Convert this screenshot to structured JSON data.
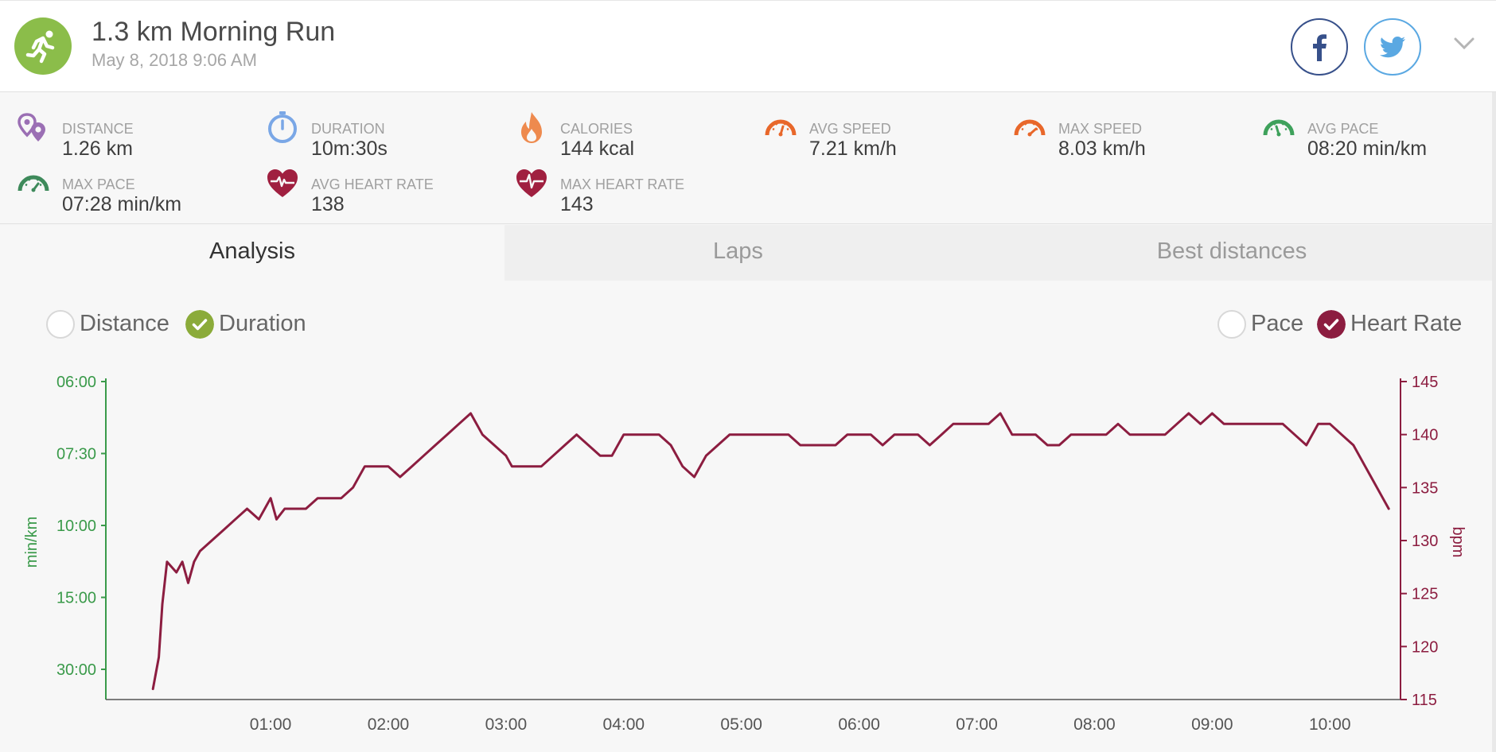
{
  "activity": {
    "title": "1.3 km Morning Run",
    "datetime": "May 8, 2018 9:06 AM",
    "icon": "running-person-icon",
    "icon_color": "#8bbd4a"
  },
  "social": {
    "facebook_icon": "facebook-icon",
    "twitter_icon": "twitter-icon",
    "expand_icon": "chevron-down-icon"
  },
  "stats": [
    {
      "label": "DISTANCE",
      "value": "1.26 km",
      "icon": "location-pins-icon",
      "color": "#9b6fb4"
    },
    {
      "label": "DURATION",
      "value": "10m:30s",
      "icon": "stopwatch-icon",
      "color": "#7aa7e6"
    },
    {
      "label": "CALORIES",
      "value": "144 kcal",
      "icon": "flame-icon",
      "color": "#ee8a4e"
    },
    {
      "label": "AVG SPEED",
      "value": "7.21 km/h",
      "icon": "speedometer-icon",
      "color": "#e8672a"
    },
    {
      "label": "MAX SPEED",
      "value": "8.03 km/h",
      "icon": "speedometer-icon",
      "color": "#e8672a"
    },
    {
      "label": "AVG PACE",
      "value": "08:20 min/km",
      "icon": "pace-gauge-icon",
      "color": "#3ea15b"
    },
    {
      "label": "MAX PACE",
      "value": "07:28 min/km",
      "icon": "pace-gauge-icon",
      "color": "#3e8a5b"
    },
    {
      "label": "AVG HEART RATE",
      "value": "138",
      "icon": "heart-rate-icon",
      "color": "#a02040"
    },
    {
      "label": "MAX HEART RATE",
      "value": "143",
      "icon": "heart-rate-icon",
      "color": "#a02040"
    }
  ],
  "tabs": [
    {
      "label": "Analysis",
      "active": true
    },
    {
      "label": "Laps",
      "active": false
    },
    {
      "label": "Best distances",
      "active": false
    }
  ],
  "toggles": {
    "distance": {
      "label": "Distance",
      "checked": false
    },
    "duration": {
      "label": "Duration",
      "checked": true,
      "color": "#8bab3a"
    },
    "pace": {
      "label": "Pace",
      "checked": false
    },
    "heart_rate": {
      "label": "Heart Rate",
      "checked": true,
      "color": "#8c1d40"
    }
  },
  "chart_data": {
    "type": "line",
    "xlabel": "",
    "x_ticks": [
      "01:00",
      "02:00",
      "03:00",
      "04:00",
      "05:00",
      "06:00",
      "07:00",
      "08:00",
      "09:00",
      "10:00"
    ],
    "x_unit": "minutes",
    "xlim": [
      -0.4,
      10.6
    ],
    "y_left": {
      "label": "min/km",
      "ticks": [
        "06:00",
        "07:30",
        "10:00",
        "15:00",
        "30:00"
      ],
      "color": "#3a9a4a"
    },
    "y_right": {
      "label": "bpm",
      "ticks": [
        145,
        140,
        135,
        130,
        125,
        120,
        115
      ],
      "ylim": [
        115,
        145
      ],
      "color": "#8c1d40"
    },
    "grid": false,
    "series": [
      {
        "name": "Heart Rate",
        "color": "#8c1d40",
        "x": [
          0.0,
          0.05,
          0.08,
          0.12,
          0.2,
          0.25,
          0.3,
          0.35,
          0.4,
          0.5,
          0.6,
          0.7,
          0.8,
          0.9,
          1.0,
          1.05,
          1.12,
          1.2,
          1.3,
          1.4,
          1.5,
          1.6,
          1.7,
          1.8,
          1.9,
          2.0,
          2.1,
          2.2,
          2.3,
          2.4,
          2.5,
          2.6,
          2.7,
          2.8,
          2.9,
          3.0,
          3.05,
          3.1,
          3.2,
          3.3,
          3.4,
          3.5,
          3.6,
          3.7,
          3.8,
          3.9,
          4.0,
          4.1,
          4.2,
          4.3,
          4.4,
          4.5,
          4.6,
          4.7,
          4.8,
          4.9,
          5.0,
          5.1,
          5.2,
          5.3,
          5.4,
          5.5,
          5.6,
          5.7,
          5.8,
          5.9,
          6.0,
          6.1,
          6.2,
          6.3,
          6.4,
          6.5,
          6.6,
          6.7,
          6.8,
          6.9,
          7.0,
          7.1,
          7.2,
          7.3,
          7.4,
          7.5,
          7.6,
          7.7,
          7.8,
          7.9,
          8.0,
          8.1,
          8.2,
          8.3,
          8.4,
          8.5,
          8.6,
          8.7,
          8.8,
          8.9,
          9.0,
          9.1,
          9.2,
          9.3,
          9.4,
          9.5,
          9.6,
          9.7,
          9.8,
          9.9,
          10.0,
          10.1,
          10.2,
          10.25,
          10.3,
          10.35,
          10.4,
          10.45,
          10.5
        ],
        "values": [
          116,
          119,
          124,
          128,
          127,
          128,
          126,
          128,
          129,
          130,
          131,
          132,
          133,
          132,
          134,
          132,
          133,
          133,
          133,
          134,
          134,
          134,
          135,
          137,
          137,
          137,
          136,
          137,
          138,
          139,
          140,
          141,
          142,
          140,
          139,
          138,
          137,
          137,
          137,
          137,
          138,
          139,
          140,
          139,
          138,
          138,
          140,
          140,
          140,
          140,
          139,
          137,
          136,
          138,
          139,
          140,
          140,
          140,
          140,
          140,
          140,
          139,
          139,
          139,
          139,
          140,
          140,
          140,
          139,
          140,
          140,
          140,
          139,
          140,
          141,
          141,
          141,
          141,
          142,
          140,
          140,
          140,
          139,
          139,
          140,
          140,
          140,
          140,
          141,
          140,
          140,
          140,
          140,
          141,
          142,
          141,
          142,
          141,
          141,
          141,
          141,
          141,
          141,
          140,
          139,
          141,
          141,
          140,
          139,
          138,
          137,
          136,
          135,
          134,
          133
        ]
      }
    ]
  }
}
